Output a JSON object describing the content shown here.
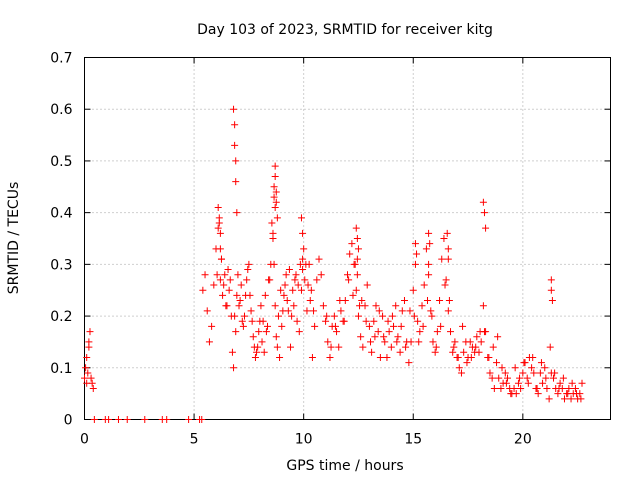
{
  "chart_data": {
    "type": "scatter",
    "title": "Day 103 of 2023, SRMTID for receiver kitg",
    "xlabel": "GPS time / hours",
    "ylabel": "SRMTID / TECUs",
    "xlim": [
      0,
      24
    ],
    "ylim": [
      0,
      0.7
    ],
    "xticks": [
      0,
      5,
      10,
      15,
      20
    ],
    "xtick_labels": [
      "0",
      "5",
      "10",
      "15",
      "20"
    ],
    "yticks": [
      0,
      0.1,
      0.2,
      0.3,
      0.4,
      0.5,
      0.6,
      0.7
    ],
    "ytick_labels": [
      "0",
      "0.1",
      "0.2",
      "0.3",
      "0.4",
      "0.5",
      "0.6",
      "0.7"
    ],
    "grid": true,
    "marker": "+",
    "series": [
      {
        "name": "SRMTID",
        "color": "#ff0000",
        "x": [
          0.0,
          0.05,
          0.1,
          0.15,
          0.2,
          0.25,
          0.3,
          0.35,
          0.4,
          0.1,
          0.2,
          0.45,
          0.95,
          1.1,
          1.55,
          1.95,
          2.75,
          3.55,
          3.75,
          4.75,
          5.25,
          5.35,
          5.4,
          5.5,
          5.6,
          5.7,
          5.8,
          5.9,
          6.0,
          6.1,
          6.2,
          6.3,
          6.4,
          6.5,
          6.6,
          6.7,
          6.8,
          6.9,
          7.0,
          7.1,
          7.2,
          7.3,
          7.4,
          7.5,
          7.6,
          7.7,
          7.8,
          7.9,
          8.0,
          8.1,
          8.2,
          8.3,
          8.4,
          8.5,
          8.6,
          8.7,
          8.8,
          8.9,
          9.0,
          9.1,
          9.2,
          9.3,
          9.4,
          9.5,
          9.6,
          9.7,
          9.8,
          9.9,
          10.0,
          10.1,
          10.2,
          10.3,
          10.4,
          10.5,
          10.6,
          10.7,
          10.8,
          10.9,
          11.0,
          11.1,
          11.2,
          11.3,
          11.4,
          11.5,
          11.6,
          11.7,
          11.8,
          11.9,
          12.0,
          12.1,
          12.2,
          12.3,
          12.4,
          12.5,
          12.6,
          12.7,
          12.8,
          12.9,
          13.0,
          13.1,
          13.2,
          13.3,
          13.4,
          13.5,
          13.6,
          13.7,
          13.8,
          13.9,
          14.0,
          14.1,
          14.2,
          14.3,
          14.4,
          14.5,
          14.6,
          14.7,
          14.8,
          14.9,
          15.0,
          15.1,
          15.2,
          15.3,
          15.4,
          15.5,
          15.6,
          15.7,
          15.8,
          15.9,
          16.0,
          16.1,
          16.2,
          16.3,
          16.4,
          16.5,
          16.6,
          16.7,
          16.8,
          16.9,
          17.0,
          17.1,
          17.2,
          17.3,
          17.4,
          17.5,
          17.6,
          17.7,
          17.8,
          17.9,
          18.0,
          18.1,
          18.2,
          18.3,
          18.4,
          18.5,
          18.6,
          18.7,
          18.8,
          18.9,
          19.0,
          19.1,
          19.2,
          19.3,
          19.4,
          19.5,
          19.6,
          19.7,
          19.8,
          19.9,
          20.0,
          20.1,
          20.2,
          20.3,
          20.4,
          20.5,
          20.6,
          20.7,
          20.8,
          20.9,
          21.0,
          21.1,
          21.2,
          21.3,
          21.4,
          21.5,
          21.6,
          21.7,
          21.8,
          21.9,
          22.0,
          22.1,
          22.2,
          22.3,
          22.4,
          22.5,
          22.6,
          22.7,
          6.05,
          6.15,
          6.25,
          6.35,
          6.45,
          6.55,
          6.65,
          6.75,
          6.85,
          6.95,
          7.05,
          7.15,
          7.25,
          7.35,
          7.45,
          7.55,
          7.65,
          7.75,
          7.85,
          7.95,
          8.05,
          8.15,
          8.25,
          8.35,
          8.45,
          8.55,
          8.65,
          8.75,
          8.85,
          8.95,
          9.05,
          9.15,
          9.25,
          9.35,
          9.45,
          9.55,
          9.65,
          9.75,
          9.85,
          9.95,
          10.05,
          10.15,
          10.25,
          10.35,
          10.45,
          11.05,
          11.25,
          11.45,
          11.65,
          11.85,
          12.05,
          12.25,
          12.35,
          12.45,
          12.55,
          12.65,
          12.85,
          13.05,
          13.25,
          13.45,
          13.65,
          13.85,
          14.05,
          14.25,
          14.45,
          14.65,
          14.85,
          15.05,
          15.25,
          15.45,
          15.65,
          15.85,
          16.05,
          16.25,
          16.45,
          16.65,
          16.85,
          17.05,
          17.25,
          17.45,
          17.65,
          17.85,
          18.05,
          18.25,
          18.45,
          18.65,
          18.85,
          19.05,
          19.25,
          19.45,
          19.65,
          19.85,
          20.05,
          20.25,
          20.45,
          20.65,
          20.85,
          21.05,
          21.25,
          21.45,
          21.65,
          21.85,
          22.05,
          22.25,
          22.45,
          22.65,
          6.8,
          6.85,
          6.85,
          6.9,
          6.9,
          6.95,
          8.7,
          8.7,
          8.75,
          8.75,
          8.8,
          8.6,
          6.1,
          6.15,
          6.2,
          9.9,
          9.95,
          12.4,
          12.45,
          12.5,
          15.1,
          15.15,
          15.7,
          15.75,
          16.55,
          16.6,
          18.2,
          18.25,
          18.3,
          21.3,
          21.3,
          21.35,
          6.2,
          6.25,
          8.65,
          8.65,
          8.7,
          9.95,
          12.45,
          15.7,
          16.6
        ],
        "y": [
          0.08,
          0.1,
          0.12,
          0.09,
          0.15,
          0.17,
          0.08,
          0.07,
          0.06,
          0.07,
          0.14,
          0.0,
          0.0,
          0.0,
          0.0,
          0.0,
          0.0,
          0.0,
          0.0,
          0.0,
          0.0,
          0.0,
          0.25,
          0.28,
          0.21,
          0.15,
          0.18,
          0.26,
          0.33,
          0.37,
          0.27,
          0.24,
          0.28,
          0.22,
          0.25,
          0.2,
          0.1,
          0.17,
          0.28,
          0.23,
          0.19,
          0.2,
          0.27,
          0.3,
          0.21,
          0.16,
          0.12,
          0.14,
          0.19,
          0.15,
          0.13,
          0.17,
          0.27,
          0.3,
          0.35,
          0.22,
          0.14,
          0.12,
          0.18,
          0.24,
          0.28,
          0.21,
          0.14,
          0.25,
          0.27,
          0.19,
          0.17,
          0.25,
          0.33,
          0.3,
          0.26,
          0.23,
          0.12,
          0.18,
          0.27,
          0.31,
          0.28,
          0.22,
          0.19,
          0.15,
          0.12,
          0.18,
          0.2,
          0.17,
          0.14,
          0.21,
          0.19,
          0.23,
          0.28,
          0.32,
          0.34,
          0.3,
          0.25,
          0.2,
          0.16,
          0.14,
          0.22,
          0.26,
          0.18,
          0.13,
          0.19,
          0.22,
          0.17,
          0.12,
          0.2,
          0.15,
          0.12,
          0.17,
          0.14,
          0.18,
          0.22,
          0.16,
          0.13,
          0.21,
          0.23,
          0.15,
          0.11,
          0.15,
          0.25,
          0.3,
          0.19,
          0.17,
          0.22,
          0.26,
          0.33,
          0.28,
          0.21,
          0.15,
          0.13,
          0.17,
          0.23,
          0.31,
          0.35,
          0.27,
          0.21,
          0.17,
          0.13,
          0.15,
          0.12,
          0.1,
          0.09,
          0.13,
          0.15,
          0.12,
          0.15,
          0.14,
          0.13,
          0.16,
          0.13,
          0.15,
          0.22,
          0.17,
          0.12,
          0.09,
          0.08,
          0.06,
          0.11,
          0.08,
          0.06,
          0.07,
          0.09,
          0.08,
          0.06,
          0.05,
          0.06,
          0.05,
          0.07,
          0.06,
          0.09,
          0.11,
          0.08,
          0.12,
          0.1,
          0.09,
          0.06,
          0.05,
          0.09,
          0.07,
          0.1,
          0.06,
          0.04,
          0.09,
          0.08,
          0.06,
          0.05,
          0.07,
          0.06,
          0.04,
          0.05,
          0.06,
          0.04,
          0.05,
          0.06,
          0.04,
          0.05,
          0.07,
          0.28,
          0.38,
          0.31,
          0.26,
          0.22,
          0.29,
          0.27,
          0.13,
          0.2,
          0.24,
          0.22,
          0.26,
          0.18,
          0.24,
          0.29,
          0.24,
          0.19,
          0.14,
          0.13,
          0.17,
          0.22,
          0.19,
          0.24,
          0.18,
          0.27,
          0.38,
          0.3,
          0.16,
          0.2,
          0.25,
          0.21,
          0.26,
          0.23,
          0.29,
          0.2,
          0.22,
          0.28,
          0.26,
          0.3,
          0.29,
          0.27,
          0.21,
          0.3,
          0.25,
          0.21,
          0.2,
          0.14,
          0.18,
          0.23,
          0.19,
          0.27,
          0.24,
          0.3,
          0.28,
          0.22,
          0.23,
          0.19,
          0.15,
          0.16,
          0.21,
          0.16,
          0.19,
          0.2,
          0.15,
          0.18,
          0.14,
          0.21,
          0.2,
          0.15,
          0.18,
          0.23,
          0.2,
          0.14,
          0.18,
          0.26,
          0.23,
          0.14,
          0.12,
          0.18,
          0.11,
          0.12,
          0.14,
          0.17,
          0.17,
          0.12,
          0.14,
          0.16,
          0.1,
          0.07,
          0.05,
          0.1,
          0.08,
          0.11,
          0.07,
          0.12,
          0.06,
          0.11,
          0.08,
          0.14,
          0.09,
          0.06,
          0.08,
          0.05,
          0.07,
          0.05,
          0.04,
          0.6,
          0.57,
          0.53,
          0.5,
          0.46,
          0.4,
          0.49,
          0.47,
          0.44,
          0.42,
          0.39,
          0.36,
          0.41,
          0.39,
          0.36,
          0.39,
          0.36,
          0.37,
          0.35,
          0.33,
          0.34,
          0.32,
          0.36,
          0.34,
          0.36,
          0.33,
          0.42,
          0.4,
          0.37,
          0.27,
          0.25,
          0.23,
          0.33,
          0.31,
          0.45,
          0.43,
          0.41,
          0.31,
          0.31,
          0.3,
          0.31
        ]
      }
    ]
  }
}
